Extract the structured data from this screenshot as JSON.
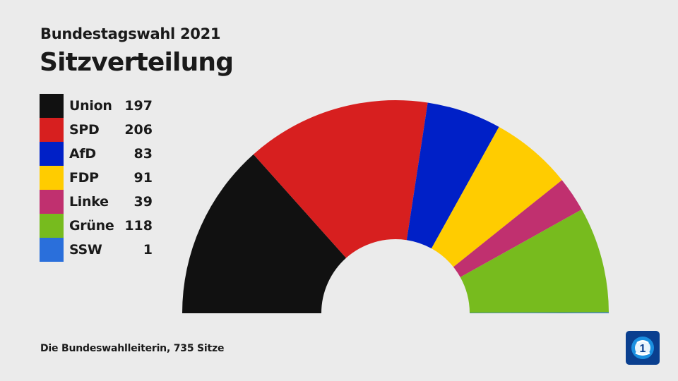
{
  "header": {
    "subtitle": "Bundestagswahl 2021",
    "title": "Sitzverteilung"
  },
  "footer": {
    "source": "Die Bundeswahlleiterin, 735 Sitze"
  },
  "logo": {
    "icon": "tagesschau-logo-icon"
  },
  "chart_data": {
    "type": "pie",
    "variant": "half-donut (parliament seat distribution)",
    "title": "Sitzverteilung",
    "subtitle": "Bundestagswahl 2021",
    "total": 735,
    "legend_placement": "left",
    "series": [
      {
        "name": "Union",
        "value": 197,
        "color": "#111111"
      },
      {
        "name": "SPD",
        "value": 206,
        "color": "#d71f1f"
      },
      {
        "name": "AfD",
        "value": 83,
        "color": "#0020c7"
      },
      {
        "name": "FDP",
        "value": 91,
        "color": "#ffcc00"
      },
      {
        "name": "Linke",
        "value": 39,
        "color": "#c0306f"
      },
      {
        "name": "Grüne",
        "value": 118,
        "color": "#77bb1e"
      },
      {
        "name": "SSW",
        "value": 1,
        "color": "#2a6fdb"
      }
    ]
  }
}
